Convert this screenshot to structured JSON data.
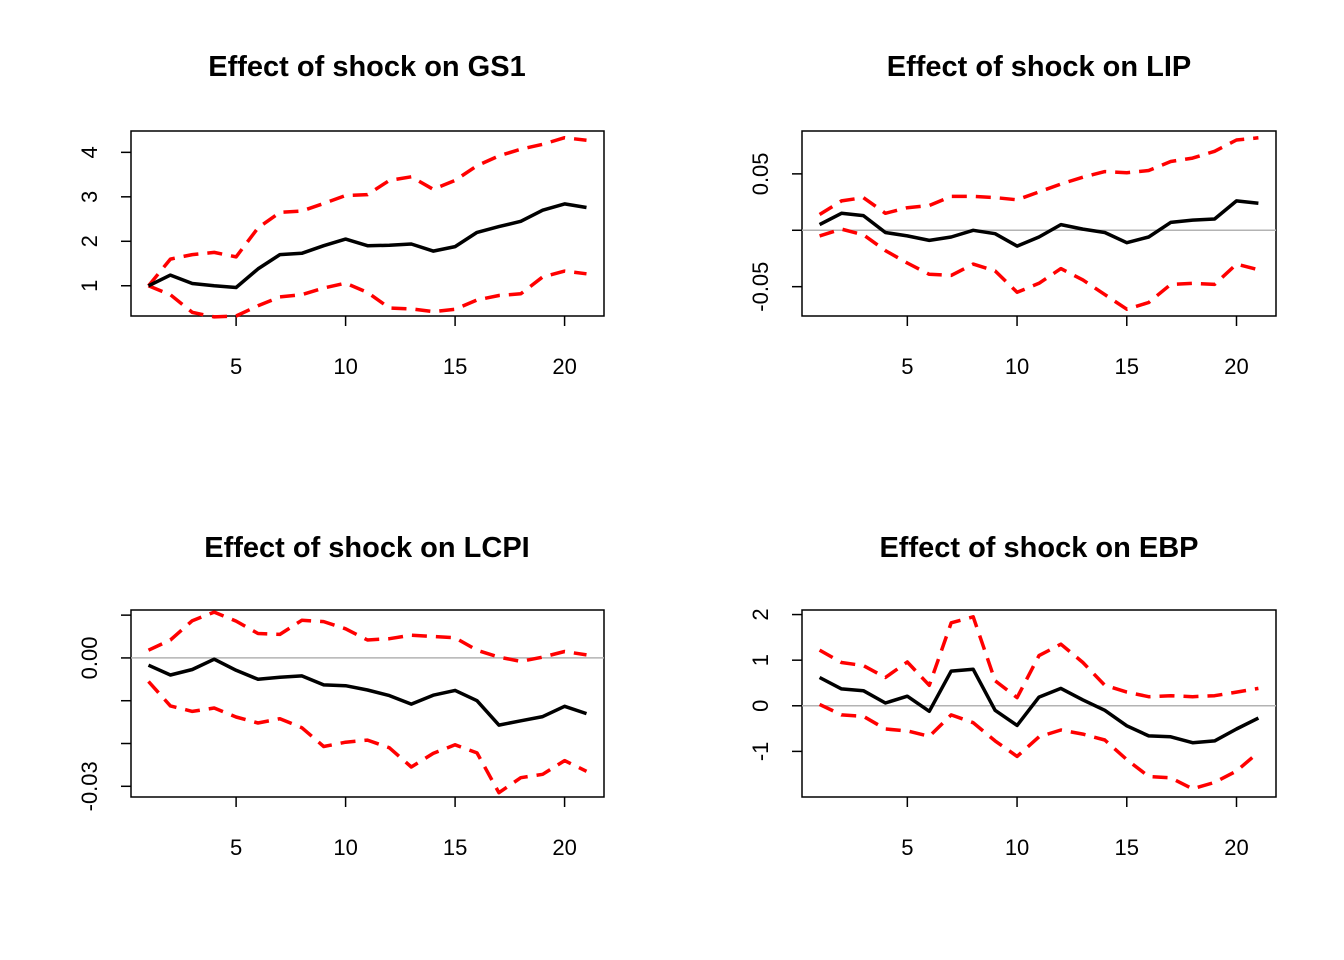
{
  "colors": {
    "estimate": "#000000",
    "bands": "#ff0000",
    "zero_line": "#b3b3b3"
  },
  "chart_data": [
    {
      "type": "line",
      "title": "Effect of shock on GS1",
      "xlabel": "",
      "ylabel": "",
      "x": [
        1,
        2,
        3,
        4,
        5,
        6,
        7,
        8,
        9,
        10,
        11,
        12,
        13,
        14,
        15,
        16,
        17,
        18,
        19,
        20,
        21
      ],
      "xlim": [
        1,
        21
      ],
      "ylim": [
        0.32,
        4.48
      ],
      "xticks": [
        5,
        10,
        15,
        20
      ],
      "xtick_labels": [
        "5",
        "10",
        "15",
        "20"
      ],
      "yticks": [
        1,
        2,
        3,
        4
      ],
      "ytick_labels": [
        "1",
        "2",
        "3",
        "4"
      ],
      "zero_line": false,
      "grid": false,
      "series": [
        {
          "role": "estimate",
          "style": "solid",
          "values": [
            1.0,
            1.24,
            1.05,
            1.0,
            0.96,
            1.38,
            1.7,
            1.73,
            1.9,
            2.05,
            1.9,
            1.91,
            1.94,
            1.78,
            1.88,
            2.2,
            2.33,
            2.45,
            2.7,
            2.84,
            2.76
          ]
        },
        {
          "role": "upper",
          "style": "dashed",
          "values": [
            1.0,
            1.6,
            1.7,
            1.75,
            1.65,
            2.3,
            2.65,
            2.68,
            2.85,
            3.03,
            3.05,
            3.37,
            3.45,
            3.17,
            3.37,
            3.7,
            3.92,
            4.07,
            4.18,
            4.33,
            4.27
          ]
        },
        {
          "role": "lower",
          "style": "dashed",
          "values": [
            1.0,
            0.8,
            0.4,
            0.3,
            0.32,
            0.55,
            0.75,
            0.8,
            0.95,
            1.06,
            0.85,
            0.5,
            0.48,
            0.42,
            0.47,
            0.68,
            0.78,
            0.82,
            1.2,
            1.33,
            1.27
          ]
        }
      ]
    },
    {
      "type": "line",
      "title": "Effect of shock on LIP",
      "xlabel": "",
      "ylabel": "",
      "x": [
        1,
        2,
        3,
        4,
        5,
        6,
        7,
        8,
        9,
        10,
        11,
        12,
        13,
        14,
        15,
        16,
        17,
        18,
        19,
        20,
        21
      ],
      "xlim": [
        1,
        21
      ],
      "ylim": [
        -0.076,
        0.088
      ],
      "xticks": [
        5,
        10,
        15,
        20
      ],
      "xtick_labels": [
        "5",
        "10",
        "15",
        "20"
      ],
      "yticks": [
        0.05,
        -0.05
      ],
      "ytick_labels": [
        "0.05",
        "-0.05"
      ],
      "minor_yticks": [
        0
      ],
      "zero_line": true,
      "grid": false,
      "series": [
        {
          "role": "estimate",
          "style": "solid",
          "values": [
            0.005,
            0.015,
            0.013,
            -0.002,
            -0.005,
            -0.009,
            -0.006,
            0.0,
            -0.003,
            -0.014,
            -0.006,
            0.005,
            0.001,
            -0.002,
            -0.011,
            -0.006,
            0.007,
            0.009,
            0.01,
            0.026,
            0.024
          ]
        },
        {
          "role": "upper",
          "style": "dashed",
          "values": [
            0.014,
            0.026,
            0.029,
            0.015,
            0.02,
            0.022,
            0.03,
            0.03,
            0.029,
            0.027,
            0.034,
            0.041,
            0.047,
            0.052,
            0.051,
            0.053,
            0.061,
            0.064,
            0.07,
            0.08,
            0.082
          ]
        },
        {
          "role": "lower",
          "style": "dashed",
          "values": [
            -0.005,
            0.001,
            -0.004,
            -0.018,
            -0.029,
            -0.039,
            -0.04,
            -0.03,
            -0.036,
            -0.055,
            -0.047,
            -0.034,
            -0.044,
            -0.057,
            -0.07,
            -0.064,
            -0.048,
            -0.047,
            -0.048,
            -0.03,
            -0.035
          ]
        }
      ]
    },
    {
      "type": "line",
      "title": "Effect of shock on LCPI",
      "xlabel": "",
      "ylabel": "",
      "x": [
        1,
        2,
        3,
        4,
        5,
        6,
        7,
        8,
        9,
        10,
        11,
        12,
        13,
        14,
        15,
        16,
        17,
        18,
        19,
        20,
        21
      ],
      "xlim": [
        1,
        21
      ],
      "ylim": [
        -0.0325,
        0.0112
      ],
      "xticks": [
        5,
        10,
        15,
        20
      ],
      "xtick_labels": [
        "5",
        "10",
        "15",
        "20"
      ],
      "yticks": [
        0.0,
        -0.03
      ],
      "ytick_labels": [
        "0.00",
        "-0.03"
      ],
      "minor_yticks": [
        0.01,
        -0.01,
        -0.02
      ],
      "zero_line": true,
      "grid": false,
      "series": [
        {
          "role": "estimate",
          "style": "solid",
          "values": [
            -0.0017,
            -0.004,
            -0.0027,
            -0.0003,
            -0.0029,
            -0.005,
            -0.0045,
            -0.0042,
            -0.0063,
            -0.0065,
            -0.0075,
            -0.0088,
            -0.0108,
            -0.0087,
            -0.0076,
            -0.01,
            -0.0157,
            -0.0147,
            -0.0137,
            -0.0113,
            -0.013
          ]
        },
        {
          "role": "upper",
          "style": "dashed",
          "values": [
            0.0018,
            0.0042,
            0.0087,
            0.0107,
            0.0086,
            0.0057,
            0.0055,
            0.0088,
            0.0085,
            0.0068,
            0.0042,
            0.0045,
            0.0053,
            0.005,
            0.0047,
            0.0018,
            0.0002,
            -0.0008,
            0.0002,
            0.0015,
            0.0007
          ]
        },
        {
          "role": "lower",
          "style": "dashed",
          "values": [
            -0.0055,
            -0.0112,
            -0.0125,
            -0.0117,
            -0.0138,
            -0.0152,
            -0.0142,
            -0.0163,
            -0.0207,
            -0.0197,
            -0.0192,
            -0.021,
            -0.0255,
            -0.0223,
            -0.0203,
            -0.0222,
            -0.0315,
            -0.028,
            -0.0272,
            -0.024,
            -0.0265
          ]
        }
      ]
    },
    {
      "type": "line",
      "title": "Effect of shock on EBP",
      "xlabel": "",
      "ylabel": "",
      "x": [
        1,
        2,
        3,
        4,
        5,
        6,
        7,
        8,
        9,
        10,
        11,
        12,
        13,
        14,
        15,
        16,
        17,
        18,
        19,
        20,
        21
      ],
      "xlim": [
        1,
        21
      ],
      "ylim": [
        -2.0,
        2.1
      ],
      "xticks": [
        5,
        10,
        15,
        20
      ],
      "xtick_labels": [
        "5",
        "10",
        "15",
        "20"
      ],
      "yticks": [
        2,
        1,
        0,
        -1
      ],
      "ytick_labels": [
        "2",
        "1",
        "0",
        "-1"
      ],
      "zero_line": true,
      "grid": false,
      "series": [
        {
          "role": "estimate",
          "style": "solid",
          "values": [
            0.62,
            0.37,
            0.33,
            0.06,
            0.21,
            -0.12,
            0.76,
            0.8,
            -0.1,
            -0.43,
            0.19,
            0.38,
            0.13,
            -0.1,
            -0.44,
            -0.66,
            -0.68,
            -0.81,
            -0.77,
            -0.51,
            -0.27
          ]
        },
        {
          "role": "upper",
          "style": "dashed",
          "values": [
            1.22,
            0.95,
            0.88,
            0.62,
            0.96,
            0.45,
            1.82,
            1.95,
            0.55,
            0.18,
            1.1,
            1.35,
            0.95,
            0.45,
            0.3,
            0.2,
            0.22,
            0.2,
            0.22,
            0.3,
            0.38
          ]
        },
        {
          "role": "lower",
          "style": "dashed",
          "values": [
            0.03,
            -0.2,
            -0.23,
            -0.51,
            -0.55,
            -0.67,
            -0.2,
            -0.37,
            -0.77,
            -1.11,
            -0.68,
            -0.53,
            -0.62,
            -0.75,
            -1.18,
            -1.55,
            -1.58,
            -1.82,
            -1.68,
            -1.43,
            -1.02
          ]
        }
      ]
    }
  ]
}
